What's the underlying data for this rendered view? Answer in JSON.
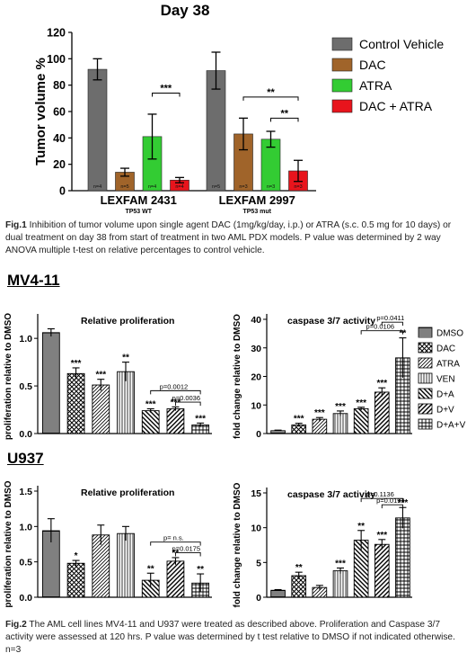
{
  "fig1": {
    "chart_data": {
      "type": "bar",
      "title": "Day 38",
      "ylabel": "Tumor volume %",
      "ylim": [
        0,
        120
      ],
      "yticks": [
        0,
        20,
        40,
        60,
        80,
        100,
        120
      ],
      "groups": [
        {
          "label": "LEXFAM 2431",
          "sublabel": "TP53 WT"
        },
        {
          "label": "LEXFAM 2997",
          "sublabel": "TP53 mut"
        }
      ],
      "series": [
        {
          "name": "Control Vehicle",
          "color": "#6d6d6d",
          "values": [
            92,
            91
          ],
          "errors": [
            8,
            14
          ],
          "n": [
            "n=4",
            "n=5"
          ]
        },
        {
          "name": "DAC",
          "color": "#a0642a",
          "values": [
            14,
            43
          ],
          "errors": [
            3,
            12
          ],
          "n": [
            "n=5",
            "n=3"
          ]
        },
        {
          "name": "ATRA",
          "color": "#33cc33",
          "values": [
            41,
            39
          ],
          "errors": [
            17,
            6
          ],
          "n": [
            "n=4",
            "n=3"
          ]
        },
        {
          "name": "DAC + ATRA",
          "color": "#e8141c",
          "values": [
            8,
            15
          ],
          "errors": [
            2,
            8
          ],
          "n": [
            "n=4",
            "n=3"
          ]
        }
      ],
      "annotations": [
        {
          "group": 0,
          "from": 2,
          "to": 3,
          "y": 74,
          "label": "***"
        },
        {
          "group": 1,
          "from": 1,
          "to": 3,
          "y": 71,
          "label": "**"
        },
        {
          "group": 1,
          "from": 2,
          "to": 3,
          "y": 55,
          "label": "**"
        }
      ]
    },
    "caption_bold": "Fig.1",
    "caption": " Inhibition of tumor volume upon single agent DAC (1mg/kg/day, i.p.) or ATRA (s.c. 0.5 mg for 10 days) or dual treatment on day 38 from start of treatment in two AML PDX models. P value was determined by 2 way ANOVA multiple t-test on relative percentages to control vehicle."
  },
  "sections": [
    "MV4-11",
    "U937"
  ],
  "legend2": [
    "DMSO",
    "DAC",
    "ATRA",
    "VEN",
    "D+A",
    "D+V",
    "D+A+V"
  ],
  "charts2": {
    "chart_data": [
      {
        "type": "bar",
        "title": "Relative proliferation",
        "ylabel": "proliferation relative to DMSO",
        "ylim": [
          0,
          1.2
        ],
        "yticks": [
          "0.0",
          "0.5",
          "1.0"
        ],
        "categories": [
          "DMSO",
          "DAC",
          "ATRA",
          "VEN",
          "D+A",
          "D+V",
          "D+A+V"
        ],
        "values": [
          1.06,
          0.63,
          0.51,
          0.65,
          0.24,
          0.26,
          0.09
        ],
        "errors": [
          0.04,
          0.06,
          0.06,
          0.1,
          0.02,
          0.02,
          0.02
        ],
        "stars": [
          "",
          "***",
          "***",
          "**",
          "***",
          "***",
          "***"
        ],
        "brackets": [
          {
            "from": 4,
            "to": 6,
            "y": 0.45,
            "label": "p=0.0012"
          },
          {
            "from": 5,
            "to": 6,
            "y": 0.33,
            "label": "p=0.0036"
          }
        ]
      },
      {
        "type": "bar",
        "title": "caspase 3/7 activity",
        "ylabel": "fold change relative to DMSO",
        "ylim": [
          0,
          40
        ],
        "yticks": [
          "0",
          "10",
          "20",
          "30",
          "40"
        ],
        "categories": [
          "DMSO",
          "DAC",
          "ATRA",
          "VEN",
          "D+A",
          "D+V",
          "D+A+V"
        ],
        "values": [
          1,
          3,
          5,
          7,
          8.7,
          14.5,
          26.5
        ],
        "errors": [
          0.2,
          0.6,
          0.6,
          0.9,
          0.5,
          1.5,
          7
        ],
        "stars": [
          "",
          "***",
          "***",
          "***",
          "***",
          "***",
          "**"
        ],
        "brackets": [
          {
            "from": 4,
            "to": 6,
            "y": 36,
            "label": "p=0.0106"
          },
          {
            "from": 5,
            "to": 6,
            "y": 39,
            "label": "p=0.0411"
          }
        ]
      },
      {
        "type": "bar",
        "title": "Relative proliferation",
        "ylabel": "proliferation relative to DMSO",
        "ylim": [
          0,
          1.5
        ],
        "yticks": [
          "0.0",
          "0.5",
          "1.0",
          "1.5"
        ],
        "categories": [
          "DMSO",
          "DAC",
          "ATRA",
          "VEN",
          "D+A",
          "D+V",
          "D+A+V"
        ],
        "values": [
          0.94,
          0.48,
          0.88,
          0.9,
          0.24,
          0.51,
          0.2
        ],
        "errors": [
          0.17,
          0.04,
          0.14,
          0.1,
          0.1,
          0.05,
          0.13
        ],
        "stars": [
          "",
          "*",
          "",
          "",
          "**",
          "**",
          "**"
        ],
        "brackets": [
          {
            "from": 4,
            "to": 6,
            "y": 0.78,
            "label": "p= n.s."
          },
          {
            "from": 5,
            "to": 6,
            "y": 0.63,
            "label": "p=0.0175"
          }
        ]
      },
      {
        "type": "bar",
        "title": "caspase 3/7 activity",
        "ylabel": "fold change relative to DMSO",
        "ylim": [
          0,
          15
        ],
        "yticks": [
          "0",
          "5",
          "10",
          "15"
        ],
        "categories": [
          "DMSO",
          "DAC",
          "ATRA",
          "VEN",
          "D+A",
          "D+V",
          "D+A+V"
        ],
        "values": [
          1,
          3.1,
          1.4,
          3.8,
          8.2,
          7.6,
          11.4
        ],
        "errors": [
          0.1,
          0.5,
          0.3,
          0.4,
          1.4,
          0.7,
          1.5
        ],
        "stars": [
          "",
          "**",
          "",
          "***",
          "**",
          "***",
          "***"
        ],
        "brackets": [
          {
            "from": 4,
            "to": 6,
            "y": 14.2,
            "label": "p=0.1136"
          },
          {
            "from": 5,
            "to": 6,
            "y": 13.3,
            "label": "p=0.0193"
          }
        ]
      }
    ]
  },
  "fig2": {
    "caption_bold": "Fig.2",
    "caption": " The AML cell lines MV4-11 and U937 were treated as described above. Proliferation and Caspase 3/7 activity were assessed at 120 hrs. P value was determined by t test relative to DMSO if not indicated otherwise. n=3"
  }
}
